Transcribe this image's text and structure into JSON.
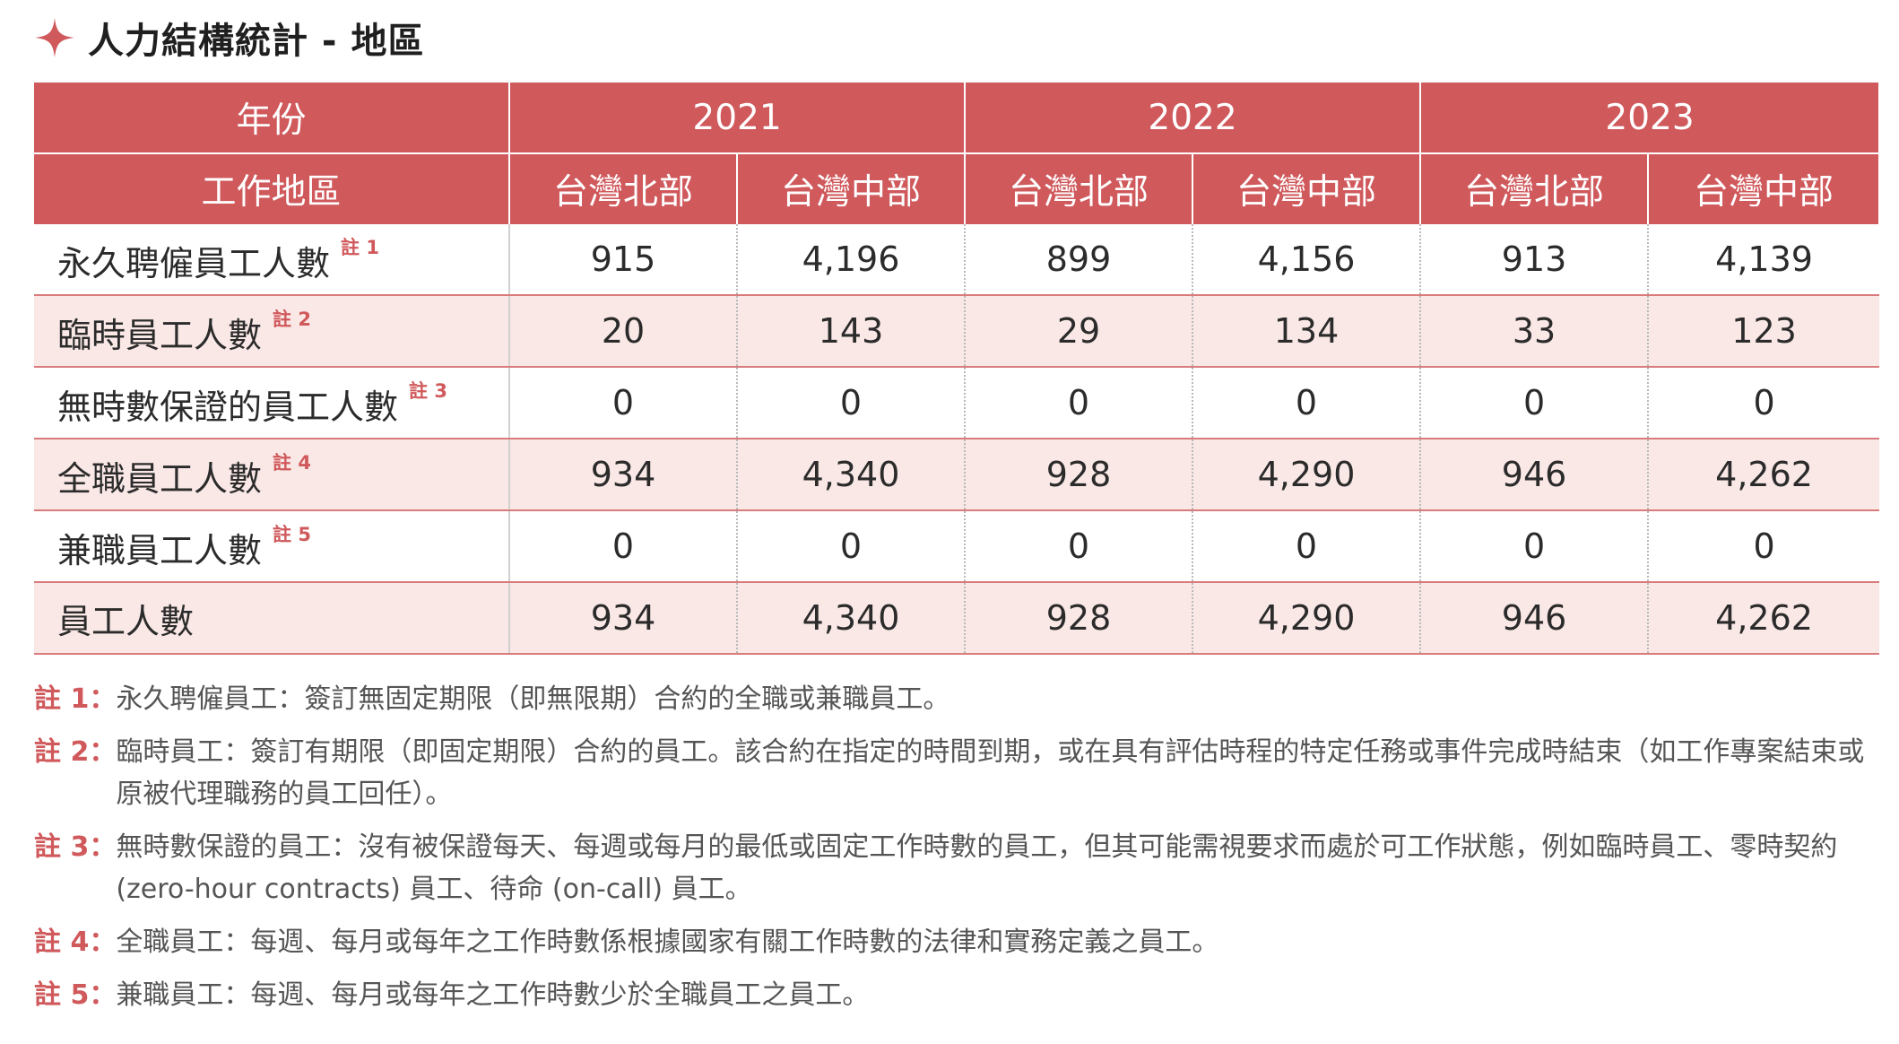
{
  "title": "人力結構統計 - 地區",
  "colors": {
    "accent": "#d0595c",
    "row_alt": "#f9e8e6",
    "note_label": "#d0595c"
  },
  "icons": {
    "title_marker": "four-point-star-icon"
  },
  "table": {
    "year_header": "年份",
    "region_header": "工作地區",
    "years": [
      "2021",
      "2022",
      "2023"
    ],
    "regions": [
      "台灣北部",
      "台灣中部",
      "台灣北部",
      "台灣中部",
      "台灣北部",
      "台灣中部"
    ],
    "rows": [
      {
        "label": "永久聘僱員工人數",
        "note": "註 1",
        "values": [
          "915",
          "4,196",
          "899",
          "4,156",
          "913",
          "4,139"
        ]
      },
      {
        "label": "臨時員工人數",
        "note": "註 2",
        "values": [
          "20",
          "143",
          "29",
          "134",
          "33",
          "123"
        ]
      },
      {
        "label": "無時數保證的員工人數",
        "note": "註 3",
        "values": [
          "0",
          "0",
          "0",
          "0",
          "0",
          "0"
        ]
      },
      {
        "label": "全職員工人數",
        "note": "註 4",
        "values": [
          "934",
          "4,340",
          "928",
          "4,290",
          "946",
          "4,262"
        ]
      },
      {
        "label": "兼職員工人數",
        "note": "註 5",
        "values": [
          "0",
          "0",
          "0",
          "0",
          "0",
          "0"
        ]
      },
      {
        "label": "員工人數",
        "note": "",
        "values": [
          "934",
          "4,340",
          "928",
          "4,290",
          "946",
          "4,262"
        ]
      }
    ]
  },
  "notes": [
    {
      "label": "註 1：",
      "text": "永久聘僱員工：簽訂無固定期限（即無限期）合約的全職或兼職員工。"
    },
    {
      "label": "註 2：",
      "text": "臨時員工：簽訂有期限（即固定期限）合約的員工。該合約在指定的時間到期，或在具有評估時程的特定任務或事件完成時結束（如工作專案結束或原被代理職務的員工回任）。"
    },
    {
      "label": "註 3：",
      "text": "無時數保證的員工：沒有被保證每天、每週或每月的最低或固定工作時數的員工，但其可能需視要求而處於可工作狀態，例如臨時員工、零時契約 (zero-hour contracts) 員工、待命 (on-call) 員工。"
    },
    {
      "label": "註 4：",
      "text": "全職員工：每週、每月或每年之工作時數係根據國家有關工作時數的法律和實務定義之員工。"
    },
    {
      "label": "註 5：",
      "text": "兼職員工：每週、每月或每年之工作時數少於全職員工之員工。"
    }
  ]
}
